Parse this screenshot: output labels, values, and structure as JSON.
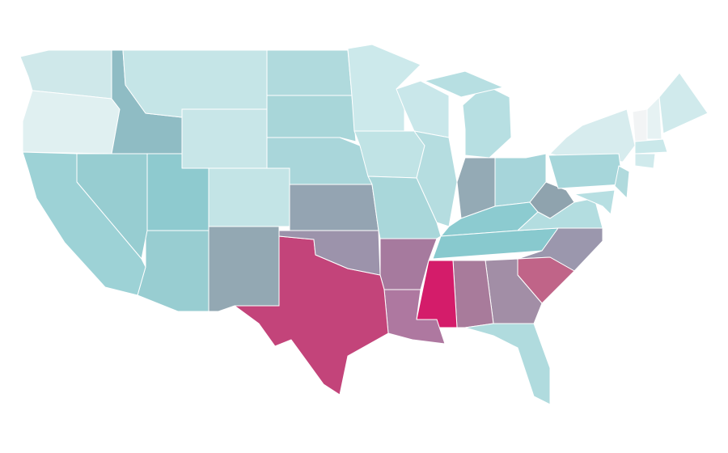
{
  "regions": [
    {
      "color": "#cfe8ea"
    },
    {
      "color": "#e0f0f1"
    },
    {
      "color": "#8fbcc4"
    },
    {
      "color": "#c5e5e7"
    },
    {
      "color": "#c8e6e8"
    },
    {
      "color": "#b0dadd"
    },
    {
      "color": "#a8d6d9"
    },
    {
      "color": "#a9d6da"
    },
    {
      "color": "#cce9eb"
    },
    {
      "color": "#c9e7ea"
    },
    {
      "color": "#c0e3e5"
    },
    {
      "color": "#b5dde0"
    },
    {
      "color": "#b7dfe2"
    },
    {
      "color": "#b7dfe2"
    },
    {
      "color": "#94aab5"
    },
    {
      "color": "#a6d5da"
    },
    {
      "color": "#8ccbd0"
    },
    {
      "color": "#88c9ce"
    },
    {
      "color": "#8fa3ae"
    },
    {
      "color": "#b3dde0"
    },
    {
      "color": "#9b97ad"
    },
    {
      "color": "#c06488"
    },
    {
      "color": "#a28ea6"
    },
    {
      "color": "#a87b9b"
    },
    {
      "color": "#d41c6a"
    },
    {
      "color": "#b0dbde"
    },
    {
      "color": "#ae78a0"
    },
    {
      "color": "#a67a9e"
    },
    {
      "color": "#c3447a"
    },
    {
      "color": "#9c93ab"
    },
    {
      "color": "#94a4b2"
    },
    {
      "color": "#a9d7da"
    },
    {
      "color": "#c3e4e6"
    },
    {
      "color": "#93a8b3"
    },
    {
      "color": "#98cdd1"
    },
    {
      "color": "#8ecacf"
    },
    {
      "color": "#97cdd1"
    },
    {
      "color": "#9dd2d6"
    },
    {
      "color": "#d7ecee"
    },
    {
      "color": "#a6d6da"
    },
    {
      "color": "#f2f4f5"
    },
    {
      "color": "#e6f2f3"
    },
    {
      "color": "#d0eaec"
    },
    {
      "color": "#cae8ea"
    },
    {
      "color": "#d0eaec"
    },
    {
      "color": "#b0dadd"
    },
    {
      "color": "#b7dfe2"
    }
  ]
}
